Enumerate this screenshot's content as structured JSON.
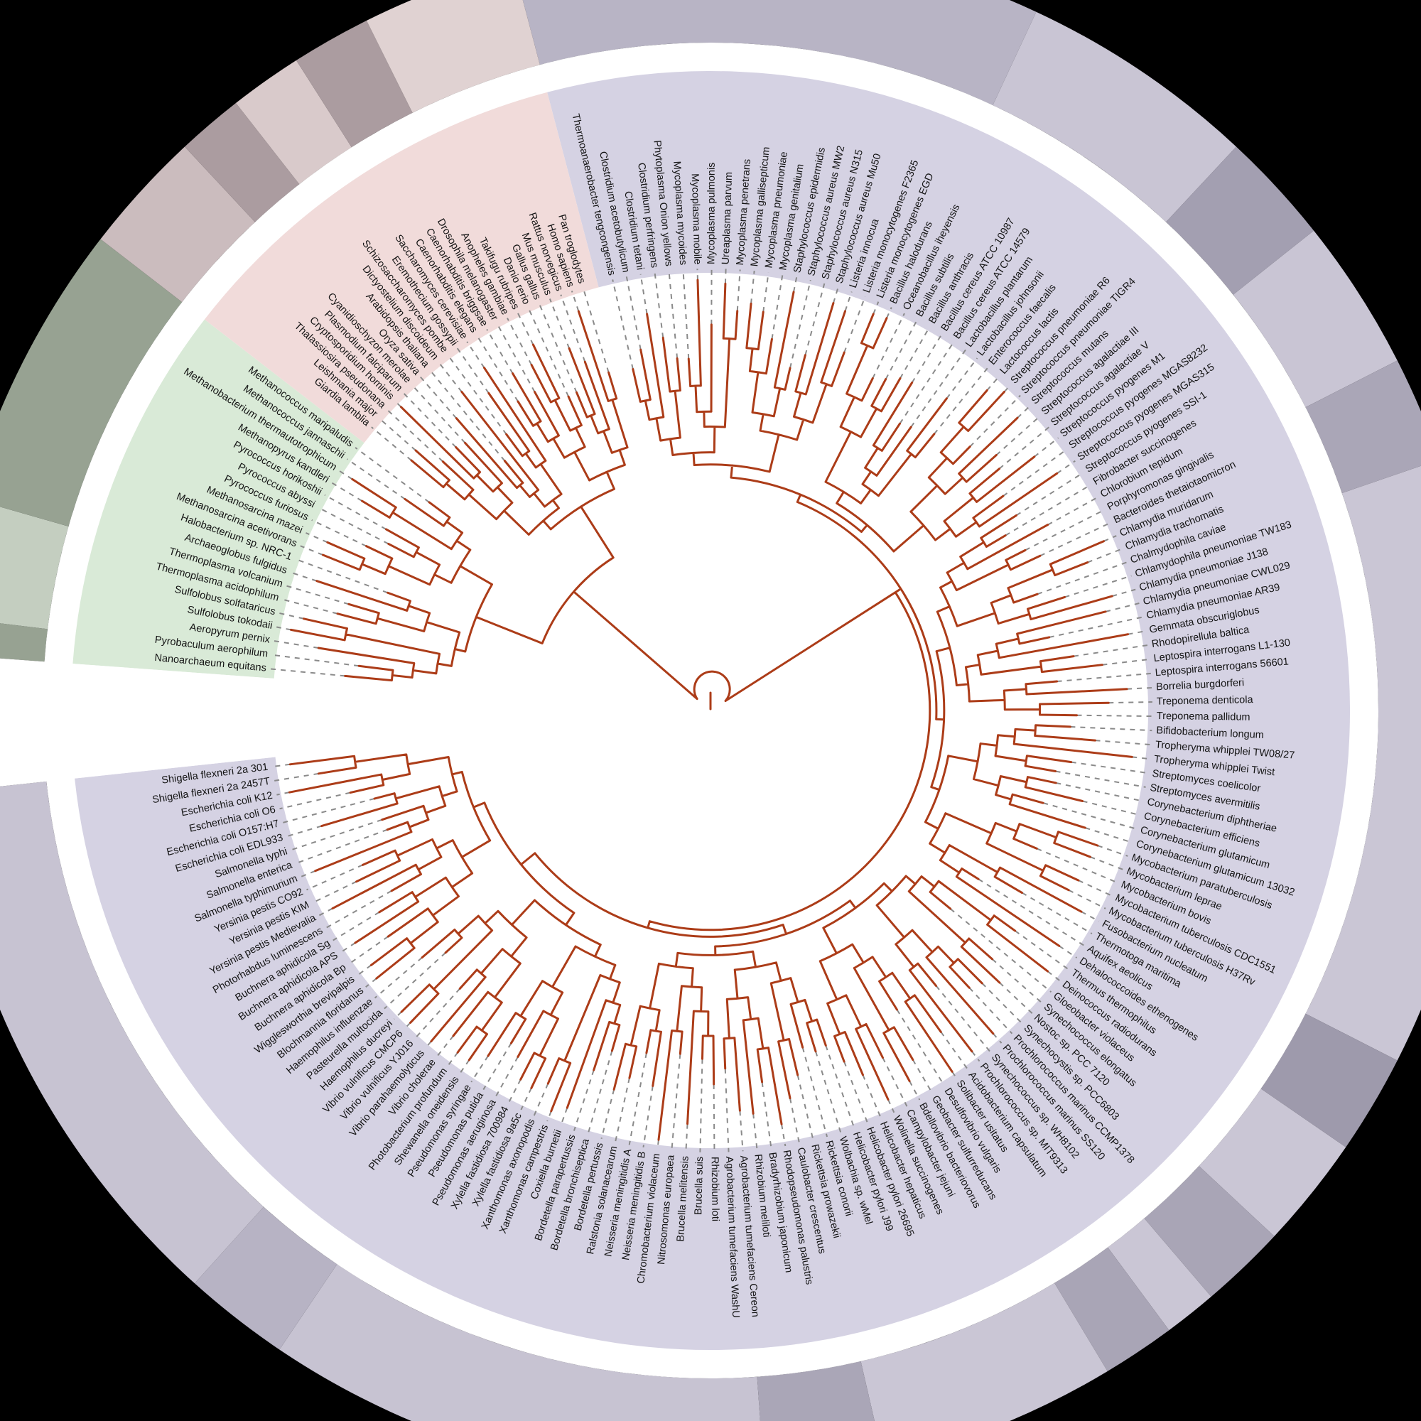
{
  "figure": {
    "type": "circular-phylogenetic-tree",
    "background": "#000000",
    "tree_color": "#ac3c18",
    "leader_color": "#8a8a8a",
    "label_color": "#141414",
    "inner_disc_color": "#ffffff",
    "separator_band_color": "#ffffff"
  },
  "domains": [
    {
      "id": "bacteria",
      "sector_color": "#d5d2e3",
      "start_bearing": 347.2,
      "pitch": 1.849,
      "species": [
        "Thermoanaerobacter tengcongensis",
        "Clostridium acetobutylicum",
        "Clostridium tetani",
        "Clostridium perfringens",
        "Phytoplasma Onion yellows",
        "Mycoplasma mycoides",
        "Mycoplasma mobile",
        "Mycoplasma pulmonis",
        "Ureaplasma parvum",
        "Mycoplasma penetrans",
        "Mycoplasma gallisepticum",
        "Mycoplasma pneumoniae",
        "Mycoplasma genitalium",
        "Staphylococcus epidermidis",
        "Staphylococcus aureus MW2",
        "Staphylococcus aureus N315",
        "Staphylococcus aureus Mu50",
        "Listeria innocua",
        "Listeria monocytogenes F2365",
        "Listeria monocytogenes EGD",
        "Bacillus halodurans",
        "Oceanobacillus iheyensis",
        "Bacillus subtilis",
        "Bacillus anthracis",
        "Bacillus cereus ATCC 10987",
        "Bacillus cereus ATCC 14579",
        "Lactobacillus plantarum",
        "Lactobacillus johnsonii",
        "Enterococcus faecalis",
        "Lactococcus lactis",
        "Streptococcus pneumoniae R6",
        "Streptococcus pneumoniae TIGR4",
        "Streptococcus mutans",
        "Streptococcus agalactiae III",
        "Streptococcus agalactiae V",
        "Streptococcus pyogenes M1",
        "Streptococcus pyogenes MGAS8232",
        "Streptococcus pyogenes MGAS315",
        "Streptococcus pyogenes SSI-1",
        "Fibrobacter succinogenes",
        "Chlorobium tepidum",
        "Porphyromonas gingivalis",
        "Bacteroides thetaiotaomicron",
        "Chlamydia muridarum",
        "Chlamydia trachomatis",
        "Chalmydophila caviae",
        "Chlamydophila pneumoniae TW183",
        "Chlamydia pneumoniae J138",
        "Chlamydia pneumoniae CWL029",
        "Chlamydia pneumoniae AR39",
        "Gemmata obscuriglobus",
        "Rhodopirellula baltica",
        "Leptospira interrogans L1-130",
        "Leptospira interrogans 56601",
        "Borrelia burgdorferi",
        "Treponema denticola",
        "Treponema pallidum",
        "Bifidobacterium longum",
        "Tropheryma whipplei TW08/27",
        "Tropheryma whipplei Twist",
        "Streptomyces coelicolor",
        "Streptomyces avermitilis",
        "Corynebacterium diphtheriae",
        "Corynebacterium efficiens",
        "Corynebacterium glutamicum",
        "Corynebacterium glutamicum 13032",
        "Mycobacterium paratuberculosis",
        "Mycobacterium leprae",
        "Mycobacterium bovis",
        "Mycobacterium tuberculosis CDC1551",
        "Mycobacterium tuberculosis H37Rv",
        "Fusobacterium nucleatum",
        "Thermotoga maritima",
        "Aquifex aeolicus",
        "Dehalococcoides ethenogenes",
        "Thermus thermophilus",
        "Deinococcus radiodurans",
        "Gloeobacter violaceus",
        "Synechococcus elongatus",
        "Nostoc sp. PCC 7120",
        "Synechocystis sp. PCC6803",
        "Prochlorococcus marinus CCMP1378",
        "Prochlorococcus marinus SS120",
        "Synechococcus sp. WH8102",
        "Prochlorococcus sp. MIT9313",
        "Acidobacterium capsulatum",
        "Solibacter usitatus",
        "Desulfovibrio vulgaris",
        "Geobacter sulfurreducans",
        "Bdellovibrio bacteriovorus",
        "Campylobacter jejuni",
        "Wolinella succinogenes",
        "Helicobacter hepaticus",
        "Helicobacter pylori 26695",
        "Helicobacter pylori J99",
        "Wolbachia sp. wMel",
        "Rickettsia conorii",
        "Rickettsia prowazekii",
        "Caulobacter crescentus",
        "Rhodopseudomonas palustris",
        "Bradyrhizobium japonicum",
        "Rhizobium meliloti",
        "Agrobacterium tumefaciens Cereon",
        "Agrobacterium tumefaciens WashU",
        "Rhizobium loti",
        "Brucella suis",
        "Brucella melitensis",
        "Nitrosomonas europaea",
        "Chromobacterium violaceum",
        "Neisseria meningitidis B",
        "Neisseria meningitidis A",
        "Ralstonia solanacearum",
        "Bordetella pertussis",
        "Bordetella bronchiseptica",
        "Bordetella parapertussis",
        "Coxiella burnetii",
        "Xanthomonas campestris",
        "Xanthomonas axonopodis",
        "Xylella fastidiosa 9a5c",
        "Xylella fastidiosa 700984",
        "Pseudomonas aeruginosa",
        "Pseudomonas putida",
        "Pseudomonas syringae",
        "Shewanella oneidensis",
        "Photobacterium profundum",
        "Vibrio cholerae",
        "Vibrio parahaemolyticus",
        "Vibrio vulnificus YJ016",
        "Vibrio vulnificus CMCP6",
        "Haemophilus ducreyi",
        "Pasteurella multocida",
        "Haemophilus influenzae",
        "Blochmannia floridanus",
        "Wigglesworthia brevipalpis",
        "Buchnera aphidicola Bp",
        "Buchnera aphidicola APS",
        "Buchnera aphidicola Sg",
        "Photorhabdus luminescens",
        "Yersinia pestis Medievalia",
        "Yersinia pestis KIM",
        "Yersinia pestis CO92",
        "Salmonella typhimurium",
        "Salmonella enterica",
        "Salmonella typhi",
        "Escherichia coli EDL933",
        "Escherichia coli O157:H7",
        "Escherichia coli O6",
        "Escherichia coli K12",
        "Shigella flexneri 2a 2457T",
        "Shigella flexneri 2a 301"
      ]
    },
    {
      "id": "archaea",
      "sector_color": "#d9ead7",
      "start_bearing": 275.4,
      "pitch": 1.83,
      "species": [
        "Nanoarchaeum equitans",
        "Pyrobaculum aerophilum",
        "Aeropyrum pernix",
        "Sulfolobus tokodaii",
        "Sulfolobus solfataricus",
        "Thermoplasma acidophilum",
        "Thermoplasma volcanium",
        "Archaeoglobus fulgidus",
        "Halobacterium sp. NRC-1",
        "Methanosarcina acetivorans",
        "Methanosarcina mazei",
        "Pyrococcus furiosus",
        "Pyrococcus abyssi",
        "Pyrococcus horikoshii",
        "Methanopyrus kandleri",
        "Methanobacterium thermautotrophicum",
        "Methanococcus jannaschii",
        "Methanococcus maripaludis"
      ]
    },
    {
      "id": "eukaryota",
      "sector_color": "#f1dbda",
      "start_bearing": 309.9,
      "pitch": 1.515,
      "species": [
        "Giardia lamblia",
        "Leishmania major",
        "Thalassiosira pseudonana",
        "Cryptosporidium hominis",
        "Plasmodium falciparum",
        "Cyanidioschyzon merolae",
        "Oryza sativa",
        "Arabidopsis thaliana",
        "Dictyostelium discoideum",
        "Schizosaccharomyces pombe",
        "Eremothecium gossypii",
        "Saccharomyces cerevisiae",
        "Caenorhabditis elegans",
        "Caenorhabditis briggsae",
        "Drosophila melanogaster",
        "Anopheles gambiae",
        "Takifugu rubripes",
        "Danio rerio",
        "Gallus gallus",
        "Mus musculus",
        "Rattus norvegicus",
        "Homo sapiens",
        "Pan troglodytes"
      ]
    }
  ],
  "sector_bounds": {
    "bacteria": [
      345.2,
      623.9
    ],
    "archaea": [
      274.2,
      307.7
    ],
    "eukaryota": [
      307.7,
      345.2
    ],
    "white_gap": [
      263.9,
      274.2
    ]
  },
  "ring": {
    "segments": [
      {
        "from": 345.2,
        "to": 385.0,
        "color": "#b8b4c5"
      },
      {
        "from": 25.0,
        "to": 43.0,
        "color": "#c9c5d4"
      },
      {
        "from": 43.0,
        "to": 51.5,
        "color": "#a39fb1"
      },
      {
        "from": 51.5,
        "to": 63.0,
        "color": "#c9c5d4"
      },
      {
        "from": 63.0,
        "to": 71.0,
        "color": "#aaa6b7"
      },
      {
        "from": 71.0,
        "to": 117.0,
        "color": "#cac6d5"
      },
      {
        "from": 117.0,
        "to": 124.5,
        "color": "#9e9aac"
      },
      {
        "from": 124.5,
        "to": 133.0,
        "color": "#cac6d5"
      },
      {
        "from": 133.0,
        "to": 139.5,
        "color": "#a9a5b6"
      },
      {
        "from": 139.5,
        "to": 143.5,
        "color": "#cac6d5"
      },
      {
        "from": 143.5,
        "to": 149.0,
        "color": "#a9a5b6"
      },
      {
        "from": 149.0,
        "to": 167.0,
        "color": "#cac6d5"
      },
      {
        "from": 167.0,
        "to": 176.0,
        "color": "#aaa6b7"
      },
      {
        "from": 176.0,
        "to": 214.0,
        "color": "#c7c3d2"
      },
      {
        "from": 214.0,
        "to": 222.0,
        "color": "#b7b3c4"
      },
      {
        "from": 222.0,
        "to": 263.9,
        "color": "#c7c3d2"
      },
      {
        "from": 274.2,
        "to": 277.0,
        "color": "#97a292"
      },
      {
        "from": 277.0,
        "to": 286.0,
        "color": "#c4cec0"
      },
      {
        "from": 286.0,
        "to": 307.7,
        "color": "#97a292"
      },
      {
        "from": 307.7,
        "to": 317.0,
        "color": "#cbbcbe"
      },
      {
        "from": 317.0,
        "to": 322.0,
        "color": "#ab9ca0"
      },
      {
        "from": 322.0,
        "to": 327.5,
        "color": "#d9cacb"
      },
      {
        "from": 327.5,
        "to": 333.5,
        "color": "#ab9ca0"
      },
      {
        "from": 333.5,
        "to": 345.2,
        "color": "#e0d2d2"
      }
    ]
  }
}
